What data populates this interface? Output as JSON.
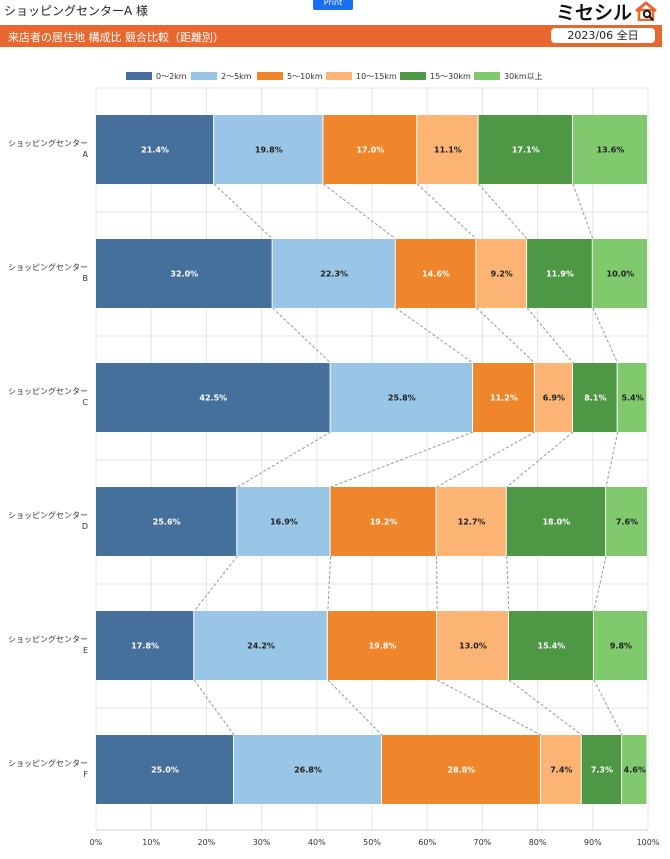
{
  "header": {
    "client": "ショッピングセンターA 様",
    "print_label": "Print",
    "logo_text": "ミセシル",
    "title": "来店者の居住地 構成比 競合比較（距離別）",
    "period": "2023/06 全日"
  },
  "colors": {
    "header_bg": "#e8672f",
    "series": [
      "#46709c",
      "#99c6e6",
      "#f0862b",
      "#fcb474",
      "#4e9745",
      "#80ca6d"
    ],
    "label_text": [
      "#ffffff",
      "#222222",
      "#ffffff",
      "#222222",
      "#ffffff",
      "#222222"
    ]
  },
  "chart_data": {
    "type": "bar",
    "orientation": "horizontal",
    "stacked": true,
    "categories": [
      [
        "ショッピングセンター",
        "A"
      ],
      [
        "ショッピングセンター",
        "B"
      ],
      [
        "ショッピングセンター",
        "C"
      ],
      [
        "ショッピングセンター",
        "D"
      ],
      [
        "ショッピングセンター",
        "E"
      ],
      [
        "ショッピングセンター",
        "F"
      ]
    ],
    "series": [
      {
        "name": "0〜2km",
        "values": [
          21.4,
          32.0,
          42.5,
          25.6,
          17.8,
          25.0
        ]
      },
      {
        "name": "2〜5km",
        "values": [
          19.8,
          22.3,
          25.8,
          16.9,
          24.2,
          26.8
        ]
      },
      {
        "name": "5〜10km",
        "values": [
          17.0,
          14.6,
          11.2,
          19.2,
          19.8,
          28.8
        ]
      },
      {
        "name": "10〜15km",
        "values": [
          11.1,
          9.2,
          6.9,
          12.7,
          13.0,
          7.4
        ]
      },
      {
        "name": "15〜30km",
        "values": [
          17.1,
          11.9,
          8.1,
          18.0,
          15.4,
          7.3
        ]
      },
      {
        "name": "30km以上",
        "values": [
          13.6,
          10.0,
          5.4,
          7.6,
          9.8,
          4.6
        ]
      }
    ],
    "x_ticks": [
      "0%",
      "10%",
      "20%",
      "30%",
      "40%",
      "50%",
      "60%",
      "70%",
      "80%",
      "90%",
      "100%"
    ],
    "xlim": [
      0,
      100
    ],
    "legend": "top",
    "grid": true,
    "connector_lines": true
  }
}
